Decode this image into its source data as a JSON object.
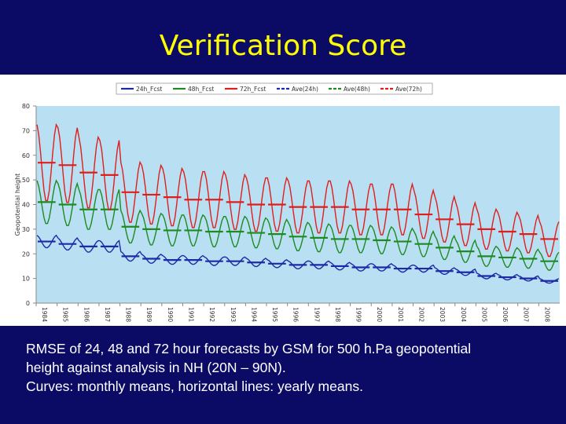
{
  "slide": {
    "title": "Verification Score",
    "caption": [
      "RMSE of 24, 48 and 72 hour forecasts by GSM for 500 h.Pa geopotential",
      "height against analysis in NH (20N – 90N).",
      "Curves: monthly means, horizontal lines: yearly means."
    ]
  },
  "colors": {
    "background": "#0b0b66",
    "title": "#ffff00",
    "plot_bg": "#b8e0f2",
    "fcst24": "#1c2aa6",
    "fcst48": "#1e8a22",
    "fcst72": "#e01e1e"
  },
  "chart_data": {
    "type": "line",
    "title": "",
    "ylabel": "Geopotential height",
    "xlabel": "",
    "ylim": [
      0,
      80
    ],
    "yticks": [
      0,
      10,
      20,
      30,
      40,
      50,
      60,
      70,
      80
    ],
    "xlim": [
      1984,
      2009
    ],
    "xticks": [
      "1984",
      "1985",
      "1986",
      "1987",
      "1988",
      "1989",
      "1990",
      "1991",
      "1992",
      "1993",
      "1994",
      "1995",
      "1996",
      "1997",
      "1998",
      "1999",
      "2000",
      "2001",
      "2002",
      "2003",
      "2004",
      "2005",
      "2006",
      "2007",
      "2008"
    ],
    "legend": {
      "position": "top",
      "entries": [
        "24h_Fcst",
        "48h_Fcst",
        "72h_Fcst",
        "Ave(24h)",
        "Ave(48h)",
        "Ave(72h)"
      ]
    },
    "grid": false,
    "yearly_means": {
      "years": [
        1984,
        1985,
        1986,
        1987,
        1988,
        1989,
        1990,
        1991,
        1992,
        1993,
        1994,
        1995,
        1996,
        1997,
        1998,
        1999,
        2000,
        2001,
        2002,
        2003,
        2004,
        2005,
        2006,
        2007,
        2008
      ],
      "Ave(24h)": [
        25,
        24,
        23,
        23,
        19,
        18,
        17.5,
        17.5,
        17,
        17,
        16.5,
        16,
        15.5,
        15.5,
        15,
        14.5,
        14.5,
        14,
        14,
        13,
        12.5,
        11,
        10.5,
        10,
        9
      ],
      "Ave(48h)": [
        41,
        40,
        38,
        38,
        31,
        30,
        29.5,
        29.5,
        29,
        29,
        28.5,
        28,
        27,
        26.5,
        26,
        26,
        25.5,
        25,
        24,
        22.5,
        21,
        19,
        18.5,
        18,
        17
      ],
      "Ave(72h)": [
        57,
        56,
        53,
        52,
        45,
        44,
        43,
        42,
        42,
        41,
        40,
        40,
        39,
        39,
        39,
        38,
        38,
        38,
        36,
        34,
        32,
        30,
        29,
        28,
        26
      ]
    }
  }
}
